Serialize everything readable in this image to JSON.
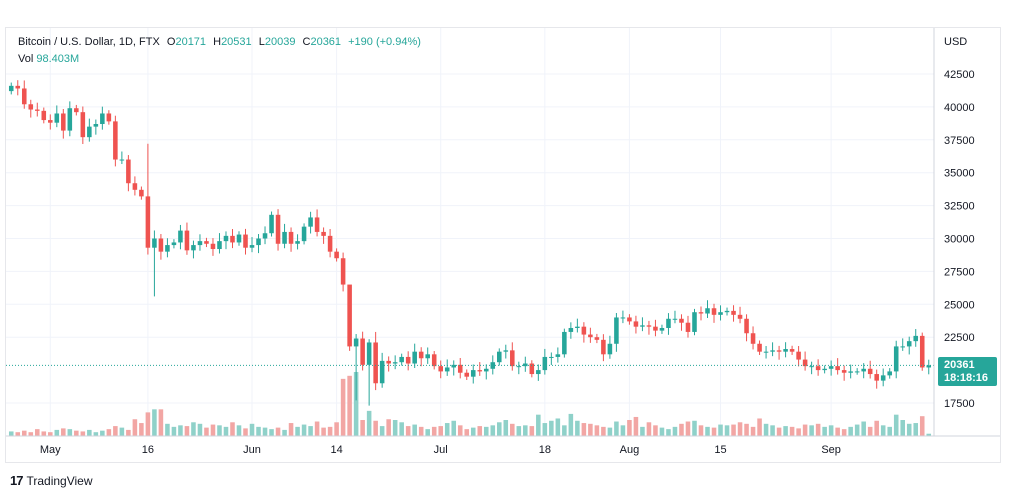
{
  "legend": {
    "symbol": "Bitcoin / U.S. Dollar, 1D, FTX",
    "open_label": "O",
    "open": "20171",
    "high_label": "H",
    "high": "20531",
    "low_label": "L",
    "low": "20039",
    "close_label": "C",
    "close": "20361",
    "change": "+190 (+0.94%)",
    "vol_label": "Vol",
    "vol": "98.403M"
  },
  "currency": "USD",
  "last_price": {
    "price": "20361",
    "countdown": "18:18:16"
  },
  "branding": {
    "logo": "17",
    "name": "TradingView"
  },
  "colors": {
    "up": "#26a69a",
    "down": "#ef5350",
    "up_vol": "#8fd1c9",
    "down_vol": "#f2a6a4",
    "grid": "#f0f3fa",
    "text": "#131722"
  },
  "chart_data": {
    "type": "candlestick",
    "ylim": [
      15000,
      44500
    ],
    "y_ticks": [
      17500,
      22500,
      25000,
      27500,
      30000,
      32500,
      35000,
      37500,
      40000,
      42500
    ],
    "x_ticks": [
      {
        "label": "May",
        "index": 6
      },
      {
        "label": "16",
        "index": 21
      },
      {
        "label": "Jun",
        "index": 37
      },
      {
        "label": "14",
        "index": 50
      },
      {
        "label": "Jul",
        "index": 66
      },
      {
        "label": "18",
        "index": 82
      },
      {
        "label": "Aug",
        "index": 95
      },
      {
        "label": "15",
        "index": 109
      },
      {
        "label": "Sep",
        "index": 126
      }
    ],
    "close": [
      41600,
      41400,
      40200,
      39800,
      39700,
      39000,
      38800,
      39500,
      38200,
      39900,
      39600,
      37700,
      38500,
      38700,
      39500,
      38900,
      36000,
      36000,
      34200,
      33700,
      33200,
      29300,
      30000,
      29000,
      29500,
      29700,
      30600,
      29100,
      29500,
      29800,
      29600,
      29200,
      29800,
      30200,
      29700,
      30300,
      29300,
      29500,
      30000,
      30400,
      31800,
      29600,
      30500,
      29600,
      29800,
      30900,
      31600,
      30500,
      30200,
      29000,
      28500,
      26500,
      21800,
      22400,
      20400,
      22100,
      19000,
      20700,
      20500,
      20600,
      21000,
      20500,
      21400,
      20900,
      21200,
      20300,
      19900,
      20200,
      20400,
      19800,
      19500,
      20000,
      19900,
      20100,
      20600,
      21400,
      21500,
      20300,
      20300,
      20500,
      19700,
      20000,
      21000,
      21000,
      21200,
      22900,
      23200,
      23300,
      22700,
      22500,
      22300,
      21200,
      22000,
      24000,
      24000,
      23700,
      23300,
      23400,
      23300,
      23000,
      23200,
      23900,
      23900,
      23600,
      22900,
      24400,
      24300,
      24700,
      24200,
      24400,
      24500,
      24200,
      23900,
      22800,
      22000,
      21400,
      21400,
      21500,
      21400,
      21600,
      21400,
      20800,
      20300,
      20300,
      20000,
      20100,
      20300,
      20000,
      19800,
      19900,
      19900,
      20100,
      19700,
      19200,
      19600,
      19900,
      21800,
      21800,
      22200,
      22600,
      20200,
      20361
    ],
    "volume": [
      6,
      5,
      7,
      5,
      9,
      6,
      5,
      8,
      10,
      9,
      7,
      6,
      8,
      5,
      7,
      9,
      13,
      11,
      8,
      22,
      17,
      31,
      35,
      35,
      16,
      12,
      14,
      13,
      18,
      16,
      11,
      15,
      14,
      12,
      18,
      14,
      10,
      16,
      12,
      11,
      9,
      11,
      8,
      17,
      12,
      15,
      13,
      19,
      11,
      12,
      18,
      75,
      79,
      84,
      21,
      33,
      20,
      13,
      22,
      21,
      18,
      13,
      15,
      12,
      9,
      12,
      13,
      17,
      20,
      14,
      9,
      11,
      13,
      12,
      14,
      18,
      21,
      16,
      13,
      14,
      13,
      28,
      17,
      20,
      23,
      14,
      29,
      20,
      17,
      16,
      14,
      12,
      11,
      19,
      14,
      21,
      25,
      12,
      18,
      14,
      11,
      9,
      12,
      16,
      19,
      20,
      14,
      12,
      11,
      15,
      14,
      15,
      18,
      16,
      12,
      23,
      16,
      14,
      11,
      13,
      12,
      10,
      15,
      14,
      16,
      12,
      14,
      11,
      9,
      12,
      15,
      19,
      12,
      20,
      14,
      12,
      28,
      21,
      16,
      17,
      26,
      3
    ]
  }
}
